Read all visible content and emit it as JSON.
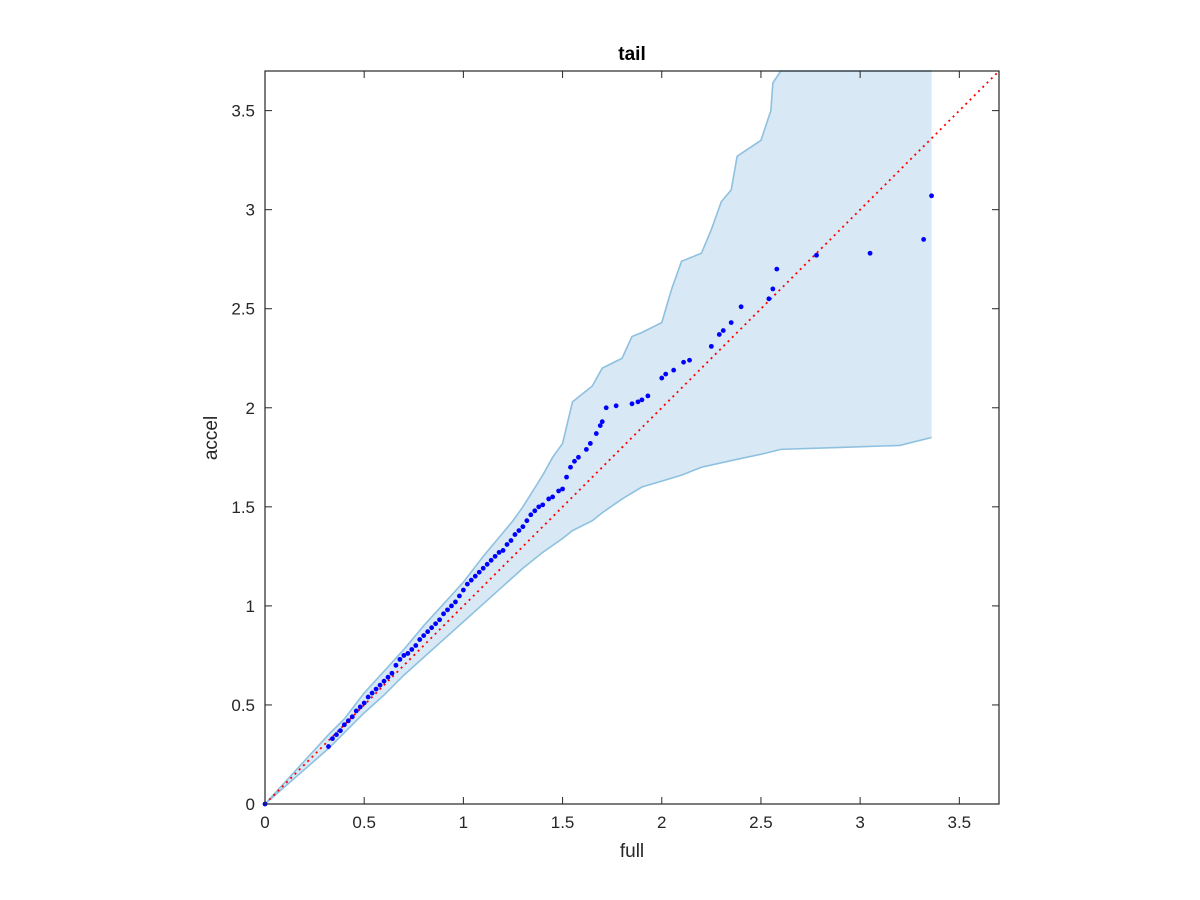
{
  "chart_data": {
    "type": "scatter",
    "title": "tail",
    "xlabel": "full",
    "ylabel": "accel",
    "xlim": [
      0,
      3.7
    ],
    "ylim": [
      0,
      3.7
    ],
    "xticks": [
      0,
      0.5,
      1,
      1.5,
      2,
      2.5,
      3,
      3.5
    ],
    "xtick_labels": [
      "0",
      "0.5",
      "1",
      "1.5",
      "2",
      "2.5",
      "3",
      "3.5"
    ],
    "yticks": [
      0,
      0.5,
      1,
      1.5,
      2,
      2.5,
      3,
      3.5
    ],
    "ytick_labels": [
      "0",
      "0.5",
      "1",
      "1.5",
      "2",
      "2.5",
      "3",
      "3.5"
    ],
    "grid": false,
    "colors": {
      "points": "#0000ff",
      "reference_line": "#ff0000",
      "band_fill": "#d8e8f4",
      "band_edge": "#8ec1e0",
      "axes": "#262626"
    },
    "reference_line": {
      "style": "dotted",
      "x": [
        0,
        3.7
      ],
      "y": [
        0,
        3.7
      ]
    },
    "confidence_band": {
      "upper": [
        [
          0,
          0
        ],
        [
          0.32,
          0.35
        ],
        [
          0.4,
          0.43
        ],
        [
          0.5,
          0.56
        ],
        [
          0.6,
          0.67
        ],
        [
          0.7,
          0.78
        ],
        [
          0.8,
          0.9
        ],
        [
          0.9,
          1.01
        ],
        [
          1.0,
          1.12
        ],
        [
          1.1,
          1.25
        ],
        [
          1.2,
          1.37
        ],
        [
          1.25,
          1.43
        ],
        [
          1.3,
          1.5
        ],
        [
          1.35,
          1.58
        ],
        [
          1.4,
          1.66
        ],
        [
          1.45,
          1.75
        ],
        [
          1.5,
          1.82
        ],
        [
          1.55,
          2.03
        ],
        [
          1.65,
          2.11
        ],
        [
          1.7,
          2.2
        ],
        [
          1.8,
          2.25
        ],
        [
          1.85,
          2.36
        ],
        [
          1.9,
          2.38
        ],
        [
          2.0,
          2.43
        ],
        [
          2.05,
          2.6
        ],
        [
          2.1,
          2.74
        ],
        [
          2.2,
          2.78
        ],
        [
          2.25,
          2.9
        ],
        [
          2.3,
          3.04
        ],
        [
          2.35,
          3.1
        ],
        [
          2.38,
          3.27
        ],
        [
          2.5,
          3.35
        ],
        [
          2.55,
          3.5
        ],
        [
          2.56,
          3.64
        ],
        [
          2.6,
          3.7
        ],
        [
          3.36,
          3.7
        ]
      ],
      "lower": [
        [
          0,
          0
        ],
        [
          0.32,
          0.28
        ],
        [
          0.4,
          0.36
        ],
        [
          0.5,
          0.46
        ],
        [
          0.6,
          0.55
        ],
        [
          0.7,
          0.65
        ],
        [
          0.8,
          0.74
        ],
        [
          0.9,
          0.83
        ],
        [
          1.0,
          0.92
        ],
        [
          1.1,
          1.01
        ],
        [
          1.2,
          1.1
        ],
        [
          1.3,
          1.19
        ],
        [
          1.4,
          1.27
        ],
        [
          1.5,
          1.34
        ],
        [
          1.55,
          1.38
        ],
        [
          1.65,
          1.43
        ],
        [
          1.7,
          1.47
        ],
        [
          1.8,
          1.54
        ],
        [
          1.9,
          1.6
        ],
        [
          2.0,
          1.63
        ],
        [
          2.1,
          1.66
        ],
        [
          2.2,
          1.7
        ],
        [
          2.38,
          1.74
        ],
        [
          2.52,
          1.77
        ],
        [
          2.6,
          1.79
        ],
        [
          2.9,
          1.8
        ],
        [
          3.2,
          1.81
        ],
        [
          3.36,
          1.85
        ]
      ]
    },
    "series": [
      {
        "x": [
          0,
          0.32,
          0.34,
          0.36,
          0.38,
          0.4,
          0.42,
          0.44,
          0.46,
          0.48,
          0.5,
          0.52,
          0.54,
          0.56,
          0.58,
          0.6,
          0.62,
          0.64,
          0.66,
          0.68,
          0.7,
          0.72,
          0.74,
          0.76,
          0.78,
          0.8,
          0.82,
          0.84,
          0.86,
          0.88,
          0.9,
          0.92,
          0.94,
          0.96,
          0.98,
          1.0,
          1.02,
          1.04,
          1.06,
          1.08,
          1.1,
          1.12,
          1.14,
          1.16,
          1.18,
          1.2,
          1.22,
          1.24,
          1.26,
          1.28,
          1.3,
          1.32,
          1.34,
          1.36,
          1.38,
          1.4,
          1.43,
          1.45,
          1.48,
          1.5,
          1.52,
          1.54,
          1.56,
          1.58,
          1.62,
          1.64,
          1.67,
          1.69,
          1.7,
          1.72,
          1.77,
          1.85,
          1.88,
          1.9,
          1.93,
          2.0,
          2.02,
          2.06,
          2.11,
          2.14,
          2.25,
          2.29,
          2.31,
          2.35,
          2.4,
          2.54,
          2.56,
          2.58,
          2.78,
          3.05,
          3.32,
          3.36
        ],
        "y": [
          0,
          0.29,
          0.33,
          0.35,
          0.37,
          0.4,
          0.42,
          0.44,
          0.47,
          0.49,
          0.51,
          0.54,
          0.56,
          0.58,
          0.6,
          0.62,
          0.64,
          0.66,
          0.7,
          0.73,
          0.75,
          0.76,
          0.78,
          0.8,
          0.83,
          0.85,
          0.87,
          0.89,
          0.91,
          0.93,
          0.96,
          0.98,
          1.0,
          1.02,
          1.05,
          1.08,
          1.11,
          1.13,
          1.15,
          1.17,
          1.19,
          1.21,
          1.23,
          1.25,
          1.27,
          1.28,
          1.31,
          1.33,
          1.36,
          1.38,
          1.4,
          1.43,
          1.46,
          1.48,
          1.5,
          1.51,
          1.54,
          1.55,
          1.58,
          1.59,
          1.65,
          1.7,
          1.73,
          1.75,
          1.79,
          1.82,
          1.87,
          1.91,
          1.93,
          2.0,
          2.01,
          2.02,
          2.03,
          2.04,
          2.06,
          2.15,
          2.17,
          2.19,
          2.23,
          2.24,
          2.31,
          2.37,
          2.39,
          2.43,
          2.51,
          2.55,
          2.6,
          2.7,
          2.77,
          2.78,
          2.85,
          3.07
        ]
      }
    ]
  }
}
